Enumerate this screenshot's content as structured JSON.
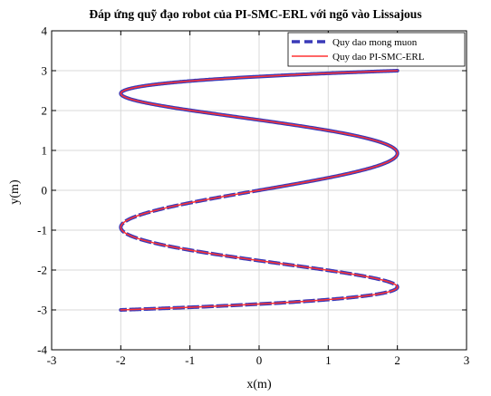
{
  "chart_data": {
    "type": "line",
    "title": "Đáp ứng quỹ đạo robot của PI-SMC-ERL với ngõ vào Lissajous",
    "xlabel": "x(m)",
    "ylabel": "y(m)",
    "xlim": [
      -3,
      3
    ],
    "ylim": [
      -4,
      4
    ],
    "xticks": [
      -3,
      -2,
      -1,
      0,
      1,
      2,
      3
    ],
    "yticks": [
      -4,
      -3,
      -2,
      -1,
      0,
      1,
      2,
      3,
      4
    ],
    "grid": true,
    "legend_position": "top-right",
    "series": [
      {
        "name": "Quy dao mong muon",
        "color": "#3a3ab8",
        "style": "dashed",
        "curve": "lissajous",
        "x_amplitude": 2,
        "y_amplitude": 3,
        "x_frequency": 5,
        "y_frequency": 1
      },
      {
        "name": "Quy dao PI-SMC-ERL",
        "color": "#ff3333",
        "style": "solid",
        "curve": "lissajous",
        "x_amplitude": 2,
        "y_amplitude": 3,
        "x_frequency": 5,
        "y_frequency": 1,
        "initial_point": [
          0,
          0
        ]
      }
    ]
  }
}
